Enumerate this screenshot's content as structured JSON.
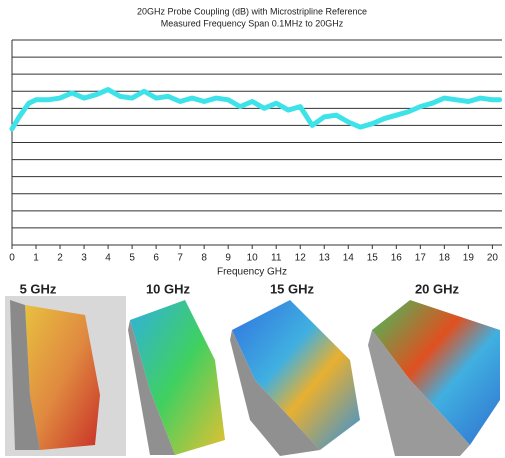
{
  "chart_data": {
    "type": "line",
    "title": "20GHz Probe Coupling (dB) with Microstripline Reference",
    "subtitle": "Measured Frequency Span 0.1MHz to 20GHz",
    "x_label": "Frequency GHz",
    "x": [
      0,
      0.3,
      0.7,
      1,
      1.5,
      2,
      2.5,
      3,
      3.5,
      4,
      4.5,
      5,
      5.5,
      6,
      6.5,
      7,
      7.5,
      8,
      8.5,
      9,
      9.5,
      10,
      10.5,
      11,
      11.5,
      12,
      12.5,
      13,
      13.5,
      14,
      14.5,
      15,
      15.5,
      16,
      16.5,
      17,
      17.5,
      18,
      18.5,
      19,
      19.5,
      20,
      20.3
    ],
    "values": [
      6.8,
      7.5,
      8.3,
      8.5,
      8.5,
      8.6,
      8.9,
      8.6,
      8.8,
      9.1,
      8.7,
      8.6,
      9.0,
      8.6,
      8.7,
      8.4,
      8.6,
      8.4,
      8.6,
      8.5,
      8.1,
      8.4,
      8.0,
      8.3,
      7.9,
      8.1,
      7.0,
      7.5,
      7.6,
      7.2,
      6.9,
      7.1,
      7.4,
      7.6,
      7.8,
      8.1,
      8.3,
      8.6,
      8.5,
      8.4,
      8.6,
      8.5,
      8.5
    ],
    "color": "#3ee3ea",
    "xlim": [
      0,
      20.4
    ],
    "xticks": [
      0,
      1,
      2,
      3,
      4,
      5,
      6,
      7,
      8,
      9,
      10,
      11,
      12,
      13,
      14,
      15,
      16,
      17,
      18,
      19,
      20
    ],
    "ylim": [
      0,
      12
    ],
    "yticks": [
      0,
      1,
      2,
      3,
      4,
      5,
      6,
      7,
      8,
      9,
      10,
      11,
      12
    ],
    "show_ytick_labels": false,
    "grid": true
  },
  "panels": [
    "5 GHz",
    "10 GHz",
    "15 GHz",
    "20 GHz"
  ]
}
